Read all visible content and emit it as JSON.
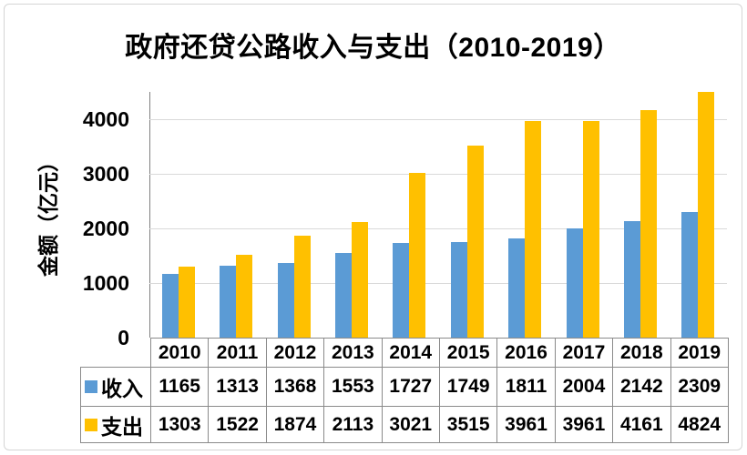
{
  "frame": {
    "border_color": "#d5d5d5",
    "background": "#ffffff"
  },
  "chart_data": {
    "type": "bar",
    "title": "政府还贷公路收入与支出（2010-2019）",
    "ylabel": "金额（亿元）",
    "xlabel": "",
    "categories": [
      "2010",
      "2011",
      "2012",
      "2013",
      "2014",
      "2015",
      "2016",
      "2017",
      "2018",
      "2019"
    ],
    "series": [
      {
        "name": "收入",
        "color": "#5B9BD5",
        "values": [
          1165,
          1313,
          1368,
          1553,
          1727,
          1749,
          1811,
          2004,
          2142,
          2309
        ]
      },
      {
        "name": "支出",
        "color": "#FFC000",
        "values": [
          1303,
          1522,
          1874,
          2113,
          3021,
          3515,
          3961,
          3961,
          4161,
          4824
        ]
      }
    ],
    "ylim": [
      0,
      4500
    ],
    "yticks": [
      0,
      1000,
      2000,
      3000,
      4000
    ],
    "grid": true,
    "legend_position": "data-table-left",
    "data_table": true,
    "colors": {
      "grid": "#d9d9d9",
      "axis": "#7f7f7f",
      "table_border": "#8a8a8a",
      "text": "#000000"
    }
  }
}
